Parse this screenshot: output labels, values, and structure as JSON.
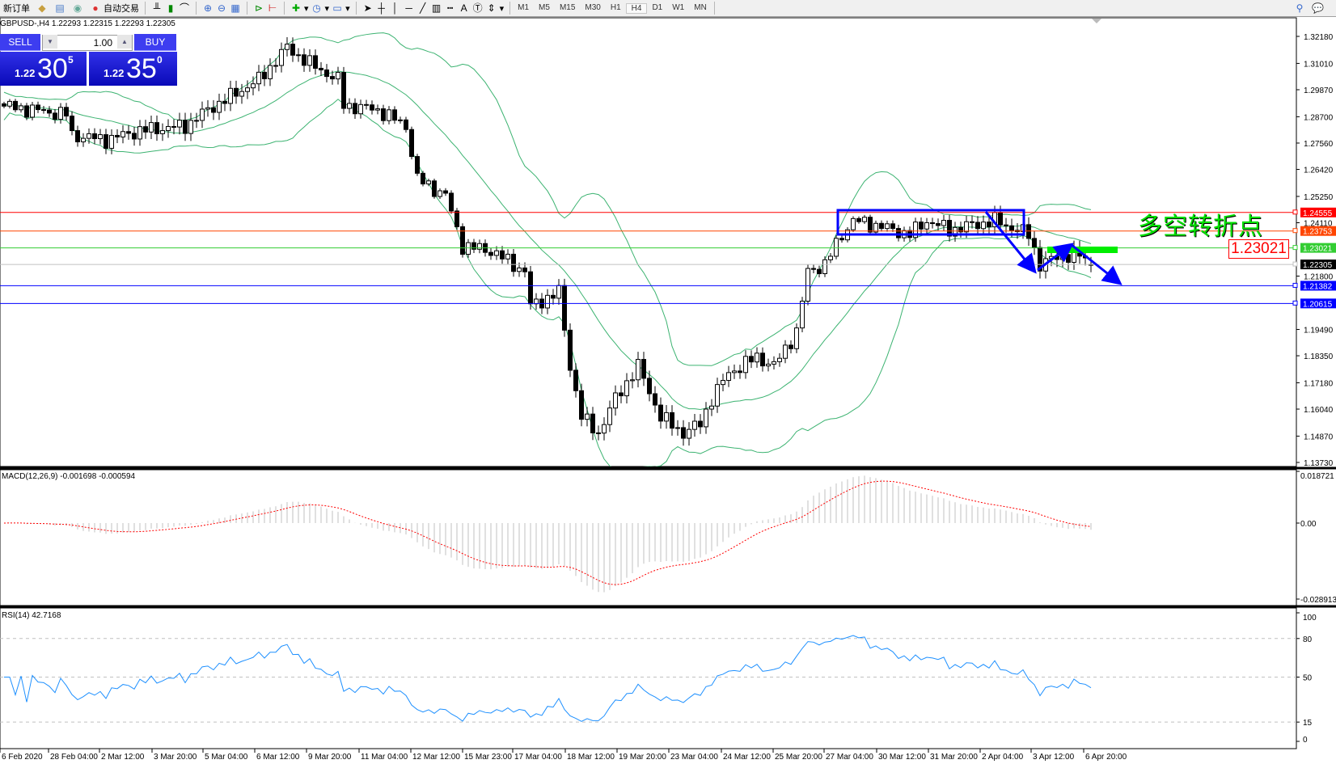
{
  "toolbar": {
    "new_order": "新订单",
    "auto_trading": "自动交易",
    "timeframes": [
      "M1",
      "M5",
      "M15",
      "M30",
      "H1",
      "H4",
      "D1",
      "W1",
      "MN"
    ],
    "active_timeframe": "H4",
    "icons": [
      "market-watch-icon",
      "navigator-icon",
      "signals-icon",
      "bar-chart-icon",
      "candle-chart-icon",
      "line-chart-icon",
      "zoom-in-icon",
      "zoom-out-icon",
      "tile-windows-icon",
      "autoscroll-icon",
      "chart-shift-icon",
      "indicators-icon",
      "periods-icon",
      "templates-icon",
      "cursor-icon",
      "crosshair-icon",
      "vertical-line-icon",
      "horizontal-line-icon",
      "trendline-icon",
      "fibonacci-icon",
      "fibo-fan-icon",
      "text-icon",
      "text-label-icon",
      "arrows-icon",
      "search-icon",
      "chat-icon"
    ]
  },
  "chart": {
    "symbol_header": "GBPUSD-,H4  1.22293 1.22315 1.22293 1.22305",
    "one_click": {
      "sell_label": "SELL",
      "buy_label": "BUY",
      "lot": "1.00",
      "sell_prefix": "1.22",
      "sell_big": "30",
      "sell_sup": "5",
      "buy_prefix": "1.22",
      "buy_big": "35",
      "buy_sup": "0"
    },
    "annotation_text": "多空转折点",
    "annotation_level": "1.23021",
    "price_ticks": [
      "1.32180",
      "1.31010",
      "1.29870",
      "1.28700",
      "1.27560",
      "1.26420",
      "1.25250",
      "1.24110",
      "1.21800",
      "1.19490",
      "1.18350",
      "1.17180",
      "1.16040",
      "1.14870",
      "1.13730"
    ],
    "levels": [
      {
        "price": "1.24555",
        "color": "#ff0000"
      },
      {
        "price": "1.23753",
        "color": "#ff4500"
      },
      {
        "price": "1.23021",
        "color": "#32cd32"
      },
      {
        "price": "1.22305",
        "color": "#000000",
        "line": "#c0c0c0"
      },
      {
        "price": "1.21382",
        "color": "#0000ff"
      },
      {
        "price": "1.20615",
        "color": "#0000ff"
      }
    ],
    "time_labels": [
      "6 Feb 2020",
      "28 Feb 04:00",
      "2 Mar 12:00",
      "3 Mar 20:00",
      "5 Mar 04:00",
      "6 Mar 12:00",
      "9 Mar 20:00",
      "11 Mar 04:00",
      "12 Mar 12:00",
      "15 Mar 23:00",
      "17 Mar 04:00",
      "18 Mar 12:00",
      "19 Mar 20:00",
      "23 Mar 04:00",
      "24 Mar 12:00",
      "25 Mar 20:00",
      "27 Mar 04:00",
      "30 Mar 12:00",
      "31 Mar 20:00",
      "2 Apr 04:00",
      "3 Apr 12:00",
      "6 Apr 20:00"
    ]
  },
  "macd": {
    "label": "MACD(12,26,9) -0.001698 -0.000594",
    "ticks": [
      "0.018721",
      "0.00",
      "-0.028913"
    ]
  },
  "rsi": {
    "label": "RSI(14) 42.7168",
    "ticks": [
      "100",
      "80",
      "50",
      "15",
      "0"
    ]
  },
  "chart_data": {
    "type": "candlestick",
    "symbol": "GBPUSD",
    "timeframe": "H4",
    "bar_count": 193,
    "close_anchors": [
      [
        0,
        1.2916
      ],
      [
        11,
        1.288
      ],
      [
        12,
        1.279
      ],
      [
        18,
        1.277
      ],
      [
        24,
        1.281
      ],
      [
        32,
        1.283
      ],
      [
        36,
        1.29
      ],
      [
        45,
        1.303
      ],
      [
        50,
        1.317
      ],
      [
        54,
        1.31
      ],
      [
        59,
        1.303
      ],
      [
        60,
        1.292
      ],
      [
        66,
        1.29
      ],
      [
        71,
        1.283
      ],
      [
        73,
        1.26
      ],
      [
        78,
        1.253
      ],
      [
        81,
        1.231
      ],
      [
        86,
        1.229
      ],
      [
        92,
        1.22
      ],
      [
        93,
        1.205
      ],
      [
        98,
        1.211
      ],
      [
        100,
        1.179
      ],
      [
        102,
        1.157
      ],
      [
        105,
        1.15
      ],
      [
        108,
        1.165
      ],
      [
        112,
        1.179
      ],
      [
        116,
        1.157
      ],
      [
        120,
        1.15
      ],
      [
        123,
        1.154
      ],
      [
        125,
        1.165
      ],
      [
        128,
        1.176
      ],
      [
        133,
        1.183
      ],
      [
        136,
        1.179
      ],
      [
        140,
        1.194
      ],
      [
        142,
        1.22
      ],
      [
        145,
        1.223
      ],
      [
        148,
        1.236
      ],
      [
        150,
        1.242
      ],
      [
        154,
        1.24
      ],
      [
        160,
        1.236
      ],
      [
        163,
        1.242
      ],
      [
        167,
        1.238
      ],
      [
        175,
        1.242
      ],
      [
        181,
        1.236
      ],
      [
        183,
        1.223
      ],
      [
        187,
        1.227
      ],
      [
        190,
        1.227
      ],
      [
        192,
        1.22305
      ]
    ],
    "indicators": [
      "Bollinger Bands(20,2)",
      "MACD(12,26,9)",
      "RSI(14)"
    ],
    "price_range": [
      1.1373,
      1.3218
    ],
    "colors": {
      "bands": "#3cb371",
      "macd_hist": "#c0c0c0",
      "macd_signal": "#ff0000",
      "rsi": "#1e90ff",
      "drawings": "#0000ff",
      "zone": "#00ee00"
    }
  }
}
